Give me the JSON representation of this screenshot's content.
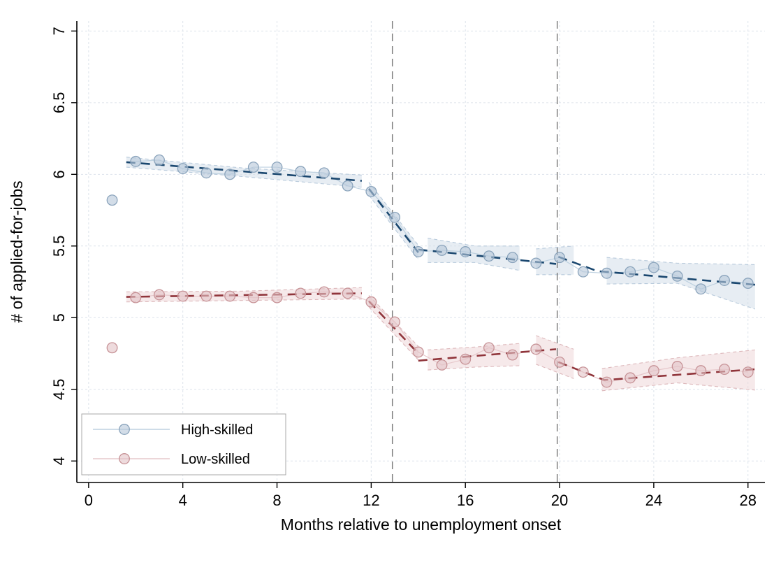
{
  "chart_data": {
    "type": "scatter",
    "title": "",
    "xlabel": "Months relative to unemployment onset",
    "ylabel": "# of applied-for-jobs",
    "xlim": [
      -0.5,
      28.72
    ],
    "ylim": [
      3.85,
      7.07
    ],
    "xticks": [
      0,
      4,
      8,
      12,
      16,
      20,
      24,
      28
    ],
    "yticks": [
      4,
      4.5,
      5,
      5.5,
      6,
      6.5,
      7
    ],
    "grid": true,
    "grid_color": "#dde3eb",
    "axis_color": "#000000",
    "vlines": [
      12.9,
      19.9
    ],
    "vline_color": "#7f7f7f",
    "legend_position": "bottom-left",
    "series": [
      {
        "name": "High-skilled",
        "marker_fill": "#b5c6d8",
        "marker_edge": "#8ba4bc",
        "connect_color": "#bed1e0",
        "fit_color": "#1a476f",
        "band_fill": "#d3dfe9",
        "band_edge": "#b9cbdc",
        "x": [
          1,
          2,
          3,
          4,
          5,
          6,
          7,
          8,
          9,
          10,
          11,
          12,
          13,
          14,
          15,
          16,
          17,
          18,
          19,
          20,
          21,
          22,
          23,
          24,
          25,
          26,
          27,
          28
        ],
        "y": [
          5.82,
          6.09,
          6.1,
          6.04,
          6.01,
          6.0,
          6.05,
          6.05,
          6.02,
          6.01,
          5.92,
          5.88,
          5.7,
          5.46,
          5.47,
          5.46,
          5.43,
          5.42,
          5.38,
          5.42,
          5.32,
          5.31,
          5.32,
          5.35,
          5.29,
          5.2,
          5.26,
          5.24
        ],
        "connect_from_x": 2,
        "fit_segments": [
          [
            [
              1.6,
              6.085
            ],
            [
              11.6,
              5.955
            ]
          ],
          [
            [
              11.9,
              5.9
            ],
            [
              14,
              5.455
            ]
          ],
          [
            [
              14,
              5.475
            ],
            [
              19.85,
              5.375
            ]
          ],
          [
            [
              19.95,
              5.425
            ],
            [
              21.6,
              5.325
            ],
            [
              28.3,
              5.23
            ]
          ]
        ],
        "bands": [
          [
            [
              1.6,
              6.05,
              6.12
            ],
            [
              6.5,
              5.985,
              6.045
            ],
            [
              11.6,
              5.91,
              5.995
            ]
          ],
          [
            [
              11.9,
              5.855,
              5.945
            ],
            [
              14,
              5.405,
              5.505
            ]
          ],
          [
            [
              14.4,
              5.385,
              5.555
            ],
            [
              16.4,
              5.385,
              5.5
            ],
            [
              18.3,
              5.33,
              5.5
            ]
          ],
          [
            [
              19.0,
              5.3,
              5.48
            ],
            [
              20.6,
              5.3,
              5.5
            ]
          ],
          [
            [
              22.0,
              5.235,
              5.42
            ],
            [
              25.0,
              5.24,
              5.38
            ],
            [
              28.3,
              5.06,
              5.37
            ]
          ]
        ]
      },
      {
        "name": "Low-skilled",
        "marker_fill": "#e3c3c6",
        "marker_edge": "#c79397",
        "connect_color": "#e6c8cb",
        "fit_color": "#90353b",
        "band_fill": "#eed7d9",
        "band_edge": "#ddb8bb",
        "x": [
          1,
          2,
          3,
          4,
          5,
          6,
          7,
          8,
          9,
          10,
          11,
          12,
          13,
          14,
          15,
          16,
          17,
          18,
          19,
          20,
          21,
          22,
          23,
          24,
          25,
          26,
          27,
          28
        ],
        "y": [
          4.79,
          5.14,
          5.16,
          5.15,
          5.15,
          5.15,
          5.14,
          5.14,
          5.17,
          5.18,
          5.17,
          5.11,
          4.97,
          4.76,
          4.67,
          4.71,
          4.79,
          4.74,
          4.78,
          4.69,
          4.62,
          4.55,
          4.58,
          4.63,
          4.66,
          4.63,
          4.64,
          4.62
        ],
        "connect_from_x": 2,
        "fit_segments": [
          [
            [
              1.6,
              5.145
            ],
            [
              11.6,
              5.17
            ]
          ],
          [
            [
              11.9,
              5.115
            ],
            [
              14,
              4.75
            ]
          ],
          [
            [
              14,
              4.7
            ],
            [
              19.85,
              4.78
            ]
          ],
          [
            [
              19.95,
              4.69
            ],
            [
              21.9,
              4.565
            ],
            [
              28.3,
              4.64
            ]
          ]
        ],
        "bands": [
          [
            [
              1.6,
              5.11,
              5.18
            ],
            [
              6.5,
              5.12,
              5.185
            ],
            [
              11.6,
              5.13,
              5.21
            ]
          ],
          [
            [
              11.9,
              5.075,
              5.155
            ],
            [
              14,
              4.705,
              4.8
            ]
          ],
          [
            [
              14.4,
              4.635,
              4.775
            ],
            [
              16.4,
              4.655,
              4.795
            ],
            [
              18.3,
              4.665,
              4.82
            ]
          ],
          [
            [
              19.0,
              4.675,
              4.875
            ],
            [
              20.6,
              4.575,
              4.78
            ]
          ],
          [
            [
              21.8,
              4.49,
              4.645
            ],
            [
              25.0,
              4.545,
              4.72
            ],
            [
              28.3,
              4.495,
              4.775
            ]
          ]
        ]
      }
    ],
    "legend": {
      "entries": [
        "High-skilled",
        "Low-skilled"
      ]
    }
  }
}
